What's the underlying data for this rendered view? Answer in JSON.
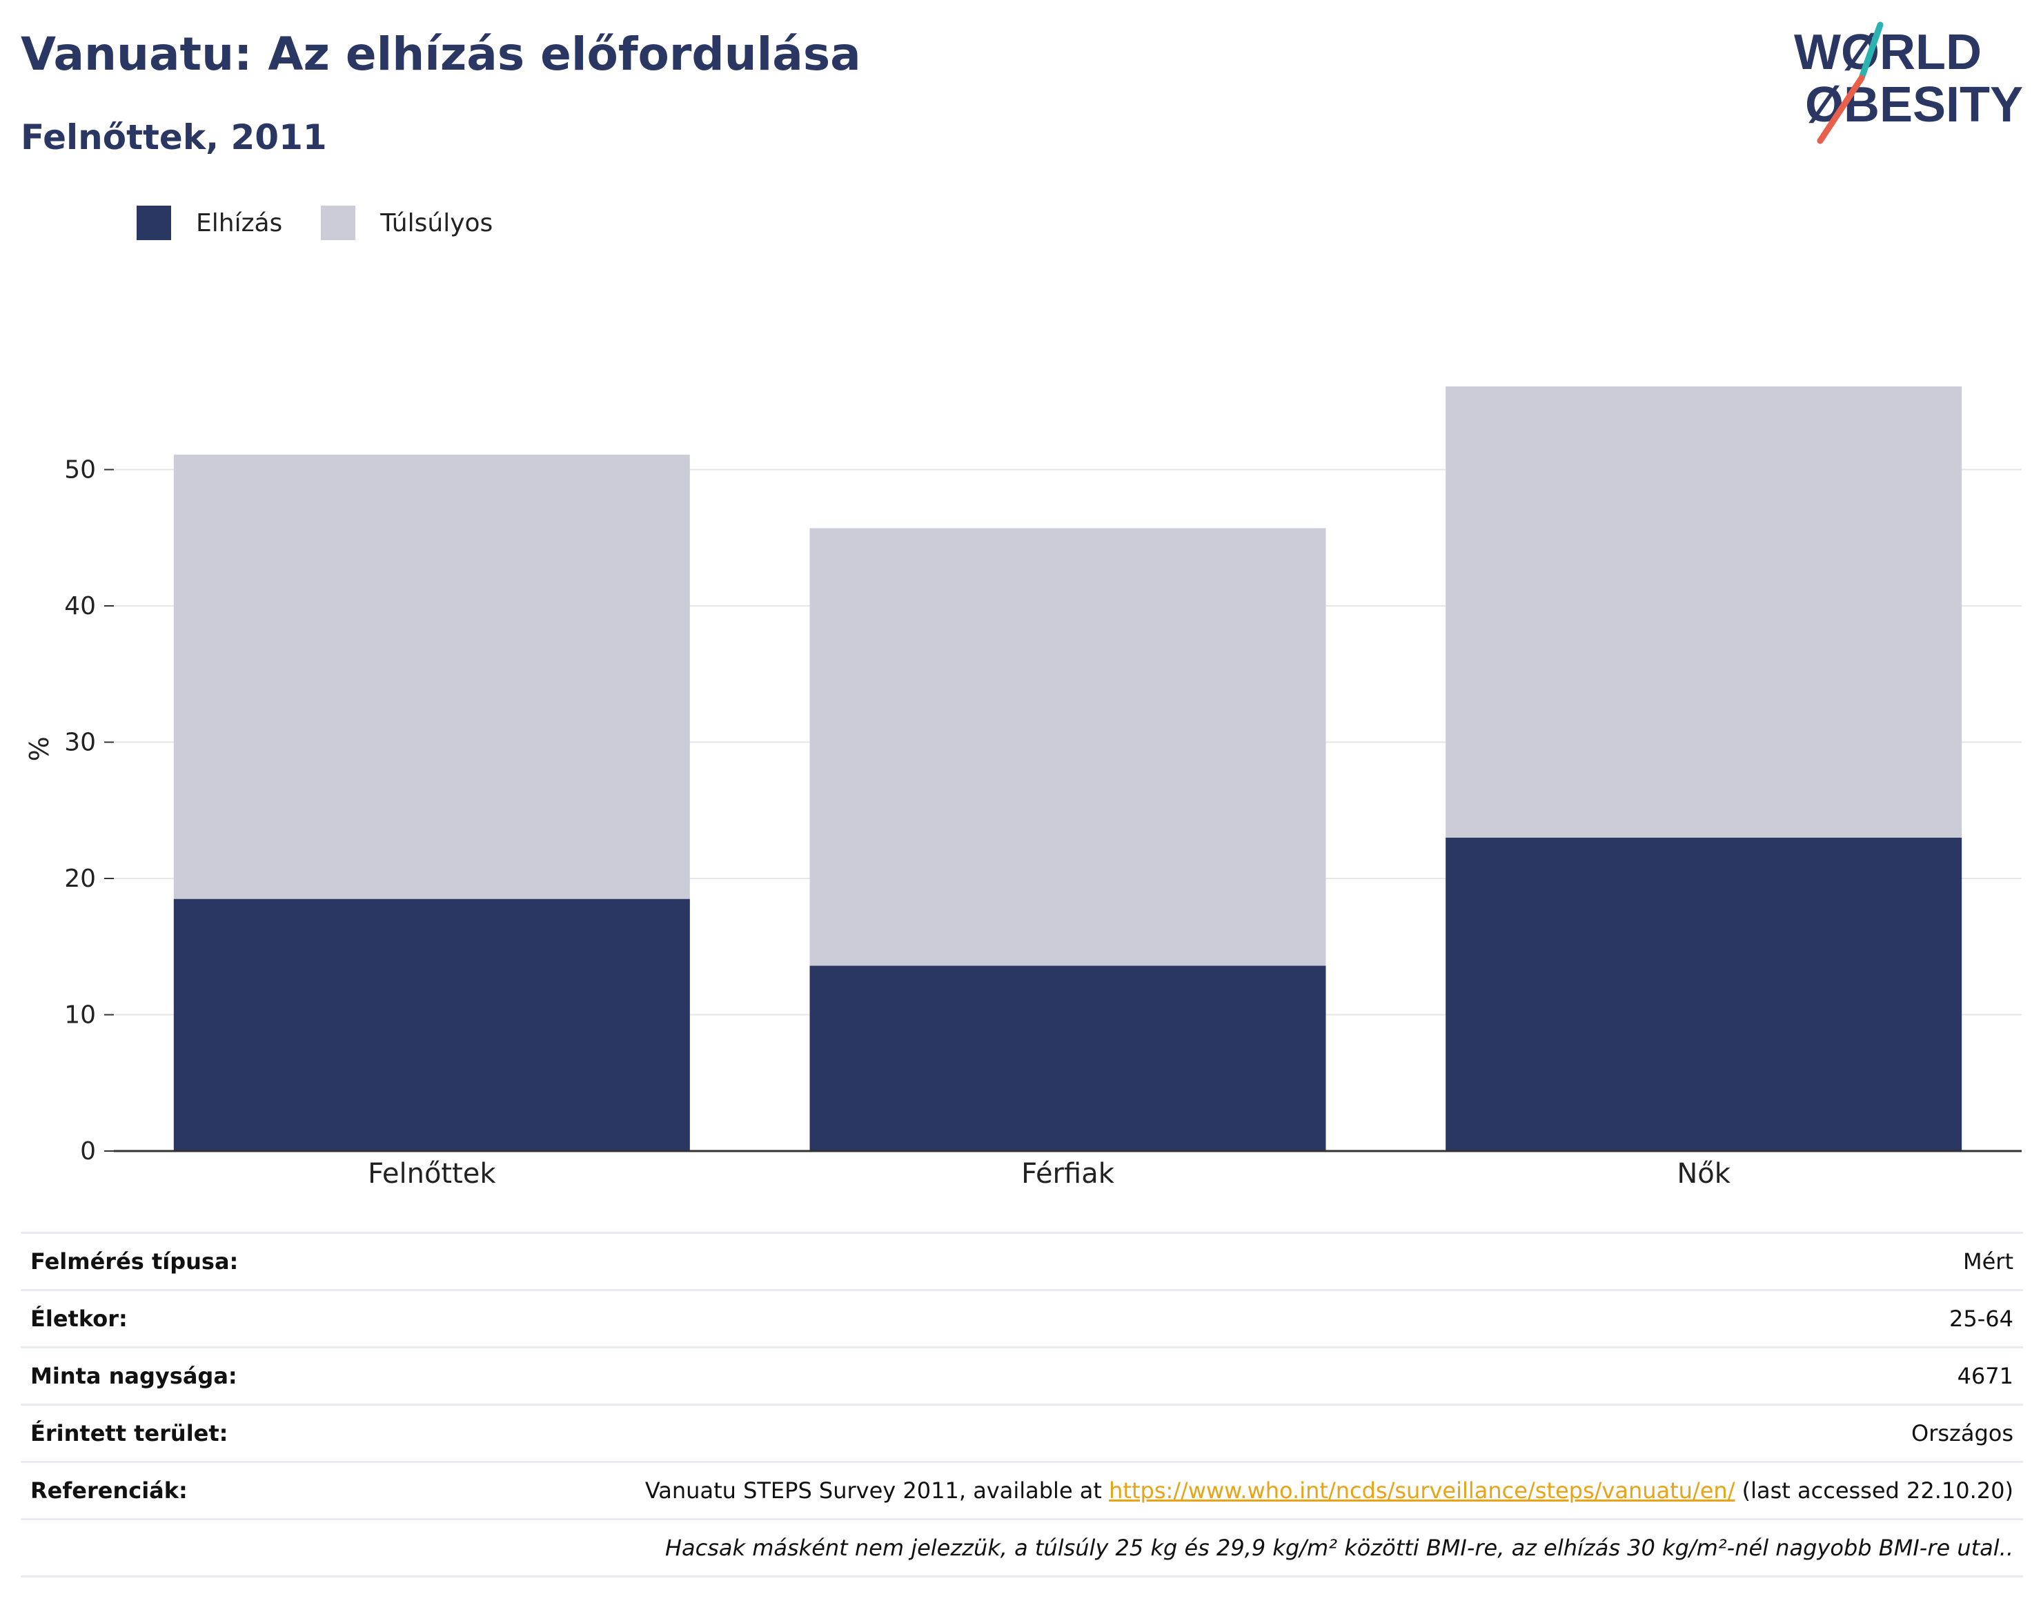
{
  "header": {
    "title": "Vanuatu: Az elhízás előfordulása",
    "subtitle": "Felnőttek, 2011"
  },
  "logo": {
    "line1": "WØRLD",
    "line2": "ØBESITY",
    "text_color": "#2a3763",
    "slash_top_color": "#2bb3b1",
    "slash_bottom_color": "#e8604c"
  },
  "colors": {
    "obesity": "#2a3763",
    "overweight": "#cbccd8",
    "grid": "#e6e6e6",
    "axis": "#333333",
    "link": "#e8a317"
  },
  "chart_data": {
    "type": "bar",
    "stacked": true,
    "categories": [
      "Felnőttek",
      "Férfiak",
      "Nők"
    ],
    "series": [
      {
        "name": "Elhízás",
        "values": [
          18.5,
          13.6,
          23.0
        ],
        "color": "#2a3763"
      },
      {
        "name": "Túlsúlyos",
        "values": [
          32.6,
          32.1,
          33.1
        ],
        "color": "#cbccd8"
      }
    ],
    "ylabel": "%",
    "xlabel": "",
    "ylim": [
      0,
      60
    ],
    "yticks": [
      0,
      10,
      20,
      30,
      40,
      50
    ],
    "grid": true,
    "legend": "top-left"
  },
  "legend": {
    "items": [
      {
        "label": "Elhízás"
      },
      {
        "label": "Túlsúlyos"
      }
    ]
  },
  "info": {
    "survey_type": {
      "label": "Felmérés típusa:",
      "value": "Mért"
    },
    "age": {
      "label": "Életkor:",
      "value": "25-64"
    },
    "sample": {
      "label": "Minta nagysága:",
      "value": "4671"
    },
    "area": {
      "label": "Érintett terület:",
      "value": "Országos"
    },
    "references": {
      "label": "Referenciák:",
      "prefix": "Vanuatu STEPS Survey 2011, available at ",
      "link": "https://www.who.int/ncds/surveillance/steps/vanuatu/en/",
      "suffix": " (last accessed 22.10.20)"
    },
    "note": "Hacsak másként nem jelezzük, a túlsúly 25 kg és 29,9 kg/m² közötti BMI-re, az elhízás 30 kg/m²-nél nagyobb BMI-re utal.."
  }
}
